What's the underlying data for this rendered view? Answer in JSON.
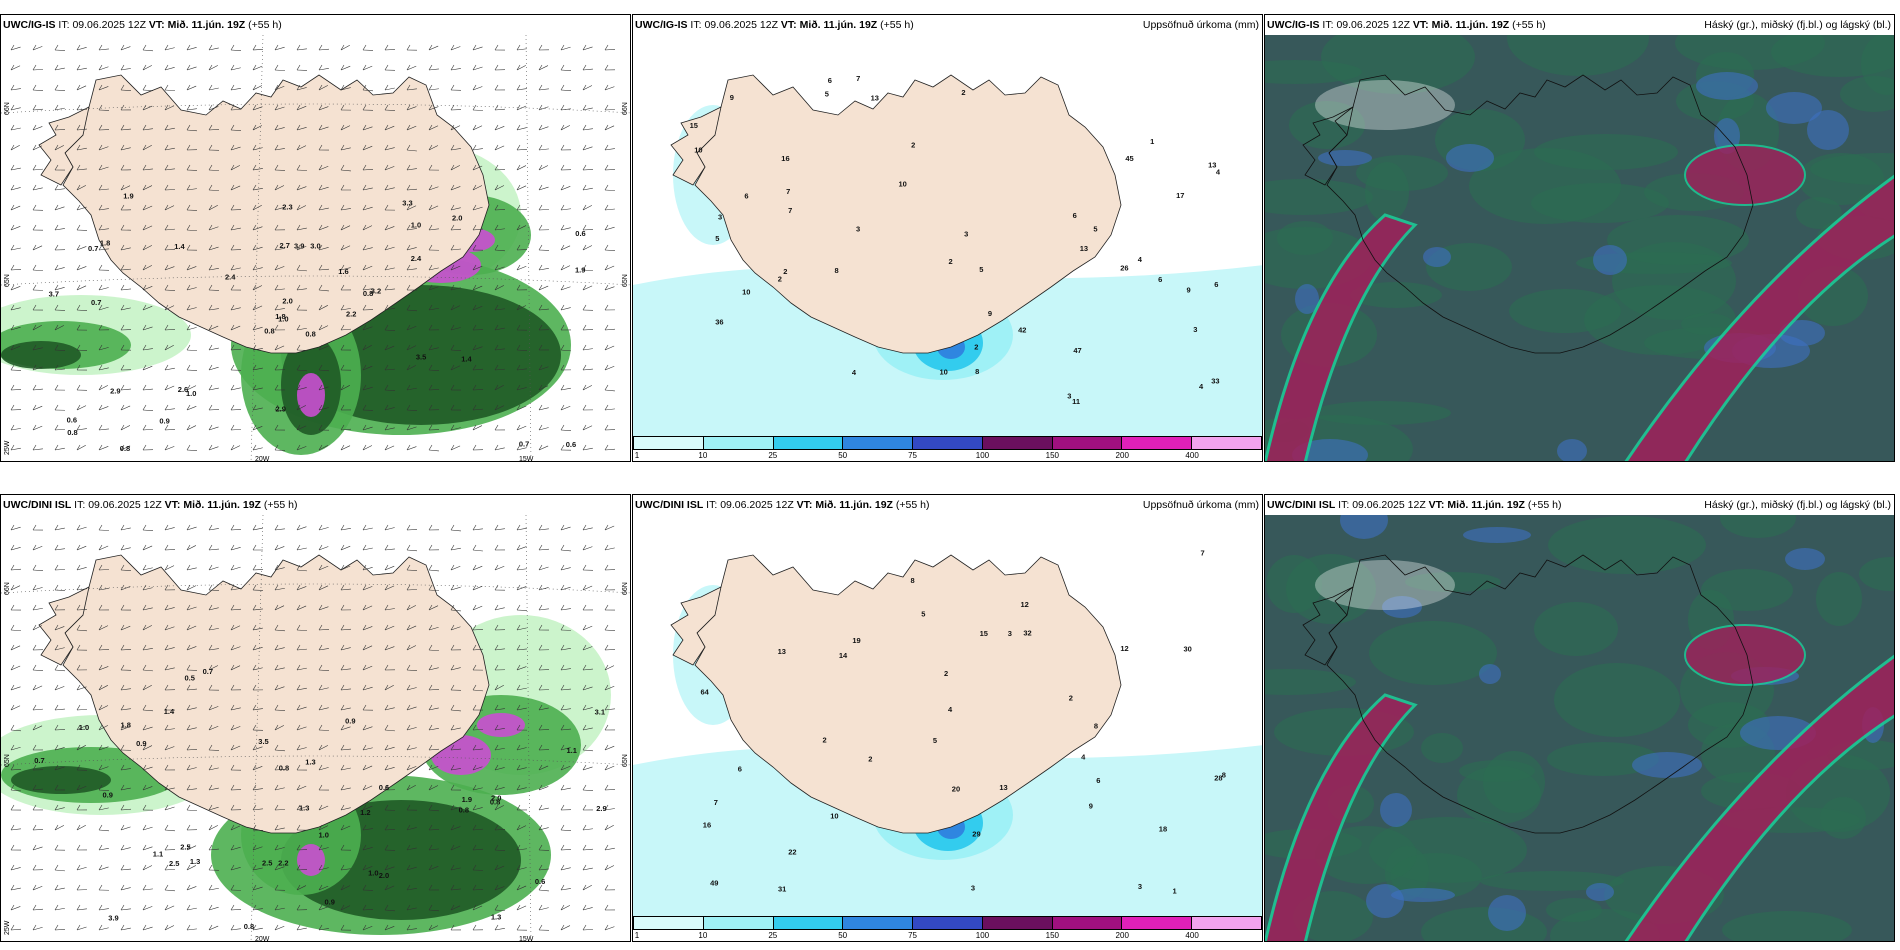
{
  "panels": [
    {
      "model": "UWC/IG-IS",
      "it_label": "IT:",
      "it_value": "09.06.2025 12Z",
      "vt_label": "VT:",
      "vt_value": "Mið. 11.jún. 19Z",
      "lead": "(+55 h)",
      "right_title": "",
      "type": "wind",
      "axis": {
        "lat_left_top": "66N",
        "lat_left_bottom": "65N",
        "lat_left_low": "25W",
        "lon_bottom_1": "20W",
        "lon_bottom_2": "15W",
        "lat_right_top": "66N",
        "lat_right_mid": "65N"
      },
      "numbers": [
        "0.8",
        "0.7",
        "1.0",
        "0.6",
        "0.8",
        "1.0",
        "3.3",
        "3.0",
        "1.0",
        "2.2",
        "1.9",
        "0.6",
        "0.7",
        "0.6",
        "0.8",
        "2.4",
        "0.8",
        "2.7",
        "1.6",
        "2.9",
        "2.4",
        "0.8",
        "0.9",
        "3.9",
        "3.2",
        "1.4",
        "1.8",
        "2.3",
        "3.7",
        "3.5",
        "1.9",
        "1.8",
        "2.9",
        "2.0",
        "1.4",
        "2.0",
        "2.6",
        "0.7"
      ]
    },
    {
      "model": "UWC/IG-IS",
      "it_label": "IT:",
      "it_value": "09.06.2025 12Z",
      "vt_label": "VT:",
      "vt_value": "Mið. 11.jún. 19Z",
      "lead": "(+55 h)",
      "right_title": "Uppsöfnuð úrkoma (mm)",
      "type": "precip",
      "numbers": [
        "3",
        "6",
        "1",
        "17",
        "2",
        "3",
        "4",
        "2",
        "5",
        "10",
        "2",
        "6",
        "5",
        "11",
        "2",
        "6",
        "10",
        "13",
        "4",
        "3",
        "2",
        "3",
        "9",
        "8",
        "7",
        "6",
        "5",
        "4",
        "9",
        "2",
        "7",
        "10",
        "13",
        "16",
        "13",
        "47",
        "42",
        "33",
        "26",
        "45",
        "36",
        "8",
        "9",
        "10",
        "5",
        "4",
        "6",
        "3",
        "7",
        "15"
      ]
    },
    {
      "model": "UWC/IG-IS",
      "it_label": "IT:",
      "it_value": "09.06.2025 12Z",
      "vt_label": "VT:",
      "vt_value": "Mið. 11.jún. 19Z",
      "lead": "(+55 h)",
      "right_title": "Háský (gr.), miðský (fj.bl.) og lágský (bl.)",
      "type": "cloud"
    },
    {
      "model": "UWC/DINI ISL",
      "it_label": "IT:",
      "it_value": "09.06.2025 12Z",
      "vt_label": "VT:",
      "vt_value": "Mið. 11.jún. 19Z",
      "lead": "(+55 h)",
      "right_title": "",
      "type": "wind",
      "axis": {
        "lat_left_top": "66N",
        "lat_left_bottom": "65N",
        "lat_left_low": "25W",
        "lon_bottom_1": "20W",
        "lon_bottom_2": "15W",
        "lat_right_top": "66N",
        "lat_right_mid": "65N"
      },
      "numbers": [
        "0.9",
        "1.0",
        "0.8",
        "0.5",
        "1.3",
        "0.9",
        "0.7",
        "1.2",
        "0.6",
        "0.8",
        "0.7",
        "1.9",
        "1.3",
        "2.0",
        "1.0",
        "0.9",
        "3.5",
        "1.3",
        "1.1",
        "2.2",
        "2.9",
        "2.5",
        "1.4",
        "0.8",
        "1.1",
        "3.9",
        "3.1",
        "2.0",
        "1.3",
        "0.9",
        "0.6",
        "1.0",
        "1.8",
        "2.5",
        "0.8",
        "2.5"
      ]
    },
    {
      "model": "UWC/DINI ISL",
      "it_label": "IT:",
      "it_value": "09.06.2025 12Z",
      "vt_label": "VT:",
      "vt_value": "Mið. 11.jún. 19Z",
      "lead": "(+55 h)",
      "right_title": "Uppsöfnuð úrkoma (mm)",
      "type": "precip",
      "numbers": [
        "2",
        "1",
        "6",
        "3",
        "8",
        "5",
        "2",
        "4",
        "3",
        "2",
        "5",
        "13",
        "12",
        "7",
        "18",
        "9",
        "19",
        "22",
        "28",
        "30",
        "29",
        "32",
        "64",
        "31",
        "16",
        "49",
        "20",
        "13",
        "14",
        "12",
        "15",
        "7",
        "8",
        "10",
        "4",
        "2",
        "6",
        "3",
        "8"
      ]
    },
    {
      "model": "UWC/DINI ISL",
      "it_label": "IT:",
      "it_value": "09.06.2025 12Z",
      "vt_label": "VT:",
      "vt_value": "Mið. 11.jún. 19Z",
      "lead": "(+55 h)",
      "right_title": "Háský (gr.), miðský (fj.bl.) og lágský (bl.)",
      "type": "cloud"
    }
  ],
  "precip_scale": {
    "ticks": [
      "1",
      "10",
      "25",
      "50",
      "75",
      "100",
      "150",
      "200",
      "400"
    ],
    "colors": [
      "#d9fbfb",
      "#9ff1f6",
      "#33ccee",
      "#2f86e0",
      "#3349c4",
      "#6b0f5e",
      "#a0107f",
      "#e020b8",
      "#f2a3ee"
    ]
  },
  "colors": {
    "land": "#f5e2d2",
    "coast": "#222222",
    "wind_light": "#c7f3c7",
    "wind_mid": "#4caf50",
    "wind_dark": "#1f5a26",
    "wind_peak": "#c94fd0",
    "precip_light": "#c8f7f9",
    "cloud_base": "#37585a",
    "cloud_green": "#2c6d52",
    "cloud_red": "#a0205a",
    "cloud_cyan": "#1ccf9a",
    "cloud_blue": "#3e6fc2"
  }
}
